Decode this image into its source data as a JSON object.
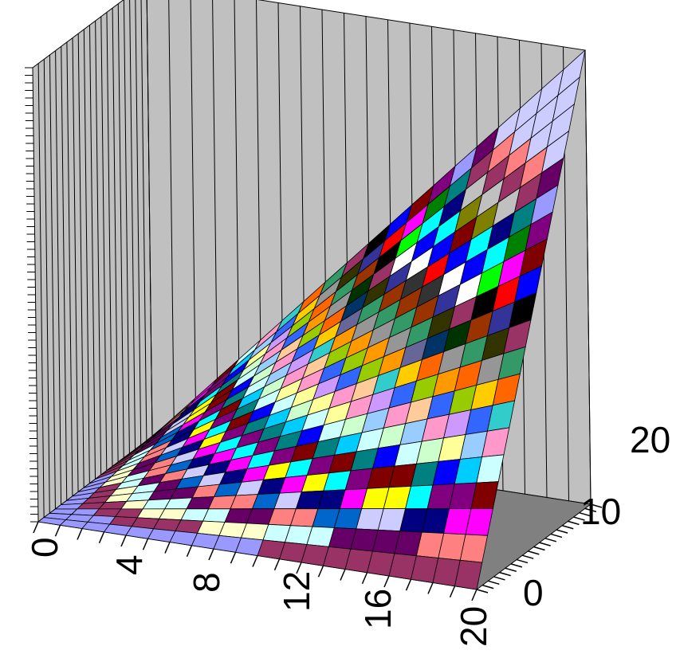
{
  "chart_data": {
    "type": "surface",
    "title": "",
    "xlabel": "",
    "ylabel": "",
    "zlabel": "",
    "x_ticks": [
      "0",
      "4",
      "8",
      "12",
      "16",
      "20"
    ],
    "y_ticks": [
      "0",
      "10",
      "20"
    ],
    "x": [
      0,
      1,
      2,
      3,
      4,
      5,
      6,
      7,
      8,
      9,
      10,
      11,
      12,
      13,
      14,
      15,
      16,
      17,
      18,
      19,
      20
    ],
    "y": [
      0,
      1,
      2,
      3,
      4,
      5,
      6,
      7,
      8,
      9,
      10,
      11,
      12,
      13,
      14,
      15,
      16,
      17,
      18,
      19,
      20
    ],
    "xlim": [
      0,
      20
    ],
    "ylim": [
      0,
      20
    ],
    "z_formula": "z = x*y",
    "zlim": [
      0,
      400
    ],
    "floor_color": "#9999ff",
    "wall_color": "#c0c0c0",
    "band_colors": [
      "#9999ff",
      "#993366",
      "#ffffcc",
      "#ccffff",
      "#660066",
      "#ff8080",
      "#0066cc",
      "#ccccff",
      "#000080",
      "#ff00ff",
      "#ffff00",
      "#00ffff",
      "#800080",
      "#800000",
      "#008080",
      "#0000ff",
      "#00ccff",
      "#ccffff",
      "#ccffcc",
      "#ffff99",
      "#99ccff",
      "#ff99cc",
      "#cc99ff",
      "#ffcc99",
      "#3366ff",
      "#33cccc",
      "#99cc00",
      "#ffcc00",
      "#ff9900",
      "#ff6600",
      "#666699",
      "#969696",
      "#003366",
      "#339966",
      "#003300",
      "#333300",
      "#993300",
      "#993366",
      "#333399",
      "#333333",
      "#000000",
      "#ffffff",
      "#ff0000",
      "#00ff00",
      "#0000ff",
      "#ffff00",
      "#ff00ff",
      "#00ffff",
      "#800000",
      "#008000",
      "#000080",
      "#808000",
      "#800080",
      "#008080",
      "#c0c0c0",
      "#808080",
      "#9999ff",
      "#993366",
      "#ffffcc",
      "#ccffff",
      "#660066",
      "#ff8080",
      "#0066cc",
      "#ccccff"
    ],
    "band_step": 5,
    "grid": true,
    "legend": "none"
  }
}
